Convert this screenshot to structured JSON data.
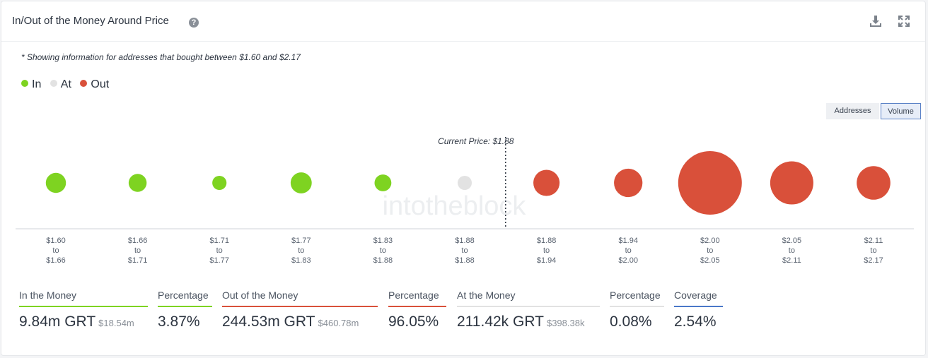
{
  "header": {
    "title": "In/Out of the Money Around Price",
    "help_icon": "question-circle-icon",
    "download_icon": "download-icon",
    "expand_icon": "expand-icon"
  },
  "note": "* Showing information for addresses that bought between $1.60 and $2.17",
  "legend": [
    {
      "label": "In",
      "color": "#7ed321"
    },
    {
      "label": "At",
      "color": "#e2e2e2"
    },
    {
      "label": "Out",
      "color": "#d9503a"
    }
  ],
  "toggle": {
    "addresses": "Addresses",
    "volume": "Volume",
    "selected": "Volume"
  },
  "watermark": "intotheblock",
  "chart_data": {
    "type": "scatter",
    "current_price_label": "Current Price: $1.88",
    "current_price_position": 5.5,
    "categories": [
      [
        "$1.60",
        "to",
        "$1.66"
      ],
      [
        "$1.66",
        "to",
        "$1.71"
      ],
      [
        "$1.71",
        "to",
        "$1.77"
      ],
      [
        "$1.77",
        "to",
        "$1.83"
      ],
      [
        "$1.83",
        "to",
        "$1.88"
      ],
      [
        "$1.88",
        "to",
        "$1.88"
      ],
      [
        "$1.88",
        "to",
        "$1.94"
      ],
      [
        "$1.94",
        "to",
        "$2.00"
      ],
      [
        "$2.00",
        "to",
        "$2.05"
      ],
      [
        "$2.05",
        "to",
        "$2.11"
      ],
      [
        "$2.11",
        "to",
        "$2.17"
      ]
    ],
    "status": [
      "in",
      "in",
      "in",
      "in",
      "in",
      "at",
      "out",
      "out",
      "out",
      "out",
      "out"
    ],
    "volume_relative": [
      0.1,
      0.08,
      0.05,
      0.11,
      0.07,
      0.04,
      0.17,
      0.2,
      1.0,
      0.46,
      0.28
    ],
    "colors": {
      "in": "#7ed321",
      "at": "#e2e2e2",
      "out": "#d9503a"
    }
  },
  "stats": [
    {
      "label": "In the Money",
      "value": "9.84m GRT",
      "sub": "$18.54m",
      "color": "#7ed321"
    },
    {
      "label": "Percentage",
      "value": "3.87%",
      "sub": "",
      "color": "#7ed321"
    },
    {
      "label": "Out of the Money",
      "value": "244.53m GRT",
      "sub": "$460.78m",
      "color": "#d9503a"
    },
    {
      "label": "Percentage",
      "value": "96.05%",
      "sub": "",
      "color": "#d9503a"
    },
    {
      "label": "At the Money",
      "value": "211.42k GRT",
      "sub": "$398.38k",
      "color": "#e2e2e2"
    },
    {
      "label": "Percentage",
      "value": "0.08%",
      "sub": "",
      "color": "#e2e2e2"
    },
    {
      "label": "Coverage",
      "value": "2.54%",
      "sub": "",
      "color": "#4a78c9"
    }
  ]
}
